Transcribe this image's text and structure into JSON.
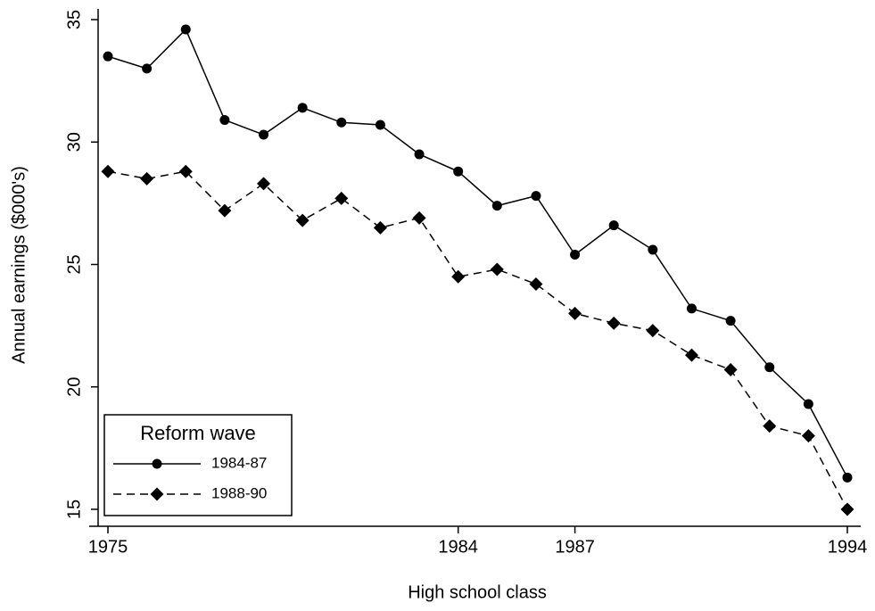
{
  "chart_data": {
    "type": "line",
    "x_label": "High school class",
    "y_label": "Annual earnings ($000's)",
    "x": [
      1975,
      1976,
      1977,
      1978,
      1979,
      1980,
      1981,
      1982,
      1983,
      1984,
      1985,
      1986,
      1987,
      1988,
      1989,
      1990,
      1991,
      1992,
      1993,
      1994
    ],
    "series": [
      {
        "name": "1984-87",
        "color": "#000000",
        "marker": "circle",
        "dashed": false,
        "values": [
          33.5,
          33.0,
          34.6,
          30.9,
          30.3,
          31.4,
          30.8,
          30.7,
          29.5,
          28.8,
          27.4,
          27.8,
          25.4,
          26.6,
          25.6,
          23.2,
          22.7,
          20.8,
          19.3,
          16.3
        ]
      },
      {
        "name": "1988-90",
        "color": "#000000",
        "marker": "diamond",
        "dashed": true,
        "values": [
          28.8,
          28.5,
          28.8,
          27.2,
          28.3,
          26.8,
          27.7,
          26.5,
          26.9,
          24.5,
          24.8,
          24.2,
          23.0,
          22.6,
          22.3,
          21.3,
          20.7,
          18.4,
          18.0,
          15.0
        ]
      }
    ],
    "xlim": [
      1975,
      1994
    ],
    "xticks": [
      1975,
      1984,
      1987,
      1994
    ],
    "ylim": [
      15,
      35
    ],
    "yticks": [
      15,
      20,
      25,
      30,
      35
    ],
    "grid": false,
    "legend_title": "Reform wave",
    "legend_position": "lower left"
  }
}
